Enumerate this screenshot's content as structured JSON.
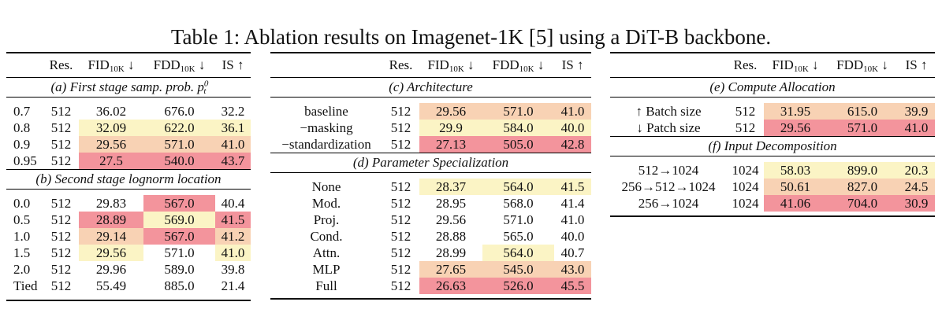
{
  "caption": "Table 1: Ablation results on Imagenet-1K [5] using a DiT-B backbone.",
  "headers": {
    "res": "Res.",
    "fid": "FID",
    "fdd": "FDD",
    "sub": "10K",
    "is": "IS",
    "down": "↓",
    "up": "↑"
  },
  "colors": {
    "low": "#fbf4c5",
    "mid": "#f8d2b4",
    "high": "#f3949c"
  },
  "left": {
    "a_title": "(a) First stage samp. prob. p",
    "a_sup": "0",
    "a_sub": "t",
    "a_rows": [
      {
        "label": "0.7",
        "res": "512",
        "fid": "36.02",
        "fdd": "676.0",
        "is": "32.2",
        "h": [
          0,
          0,
          0
        ]
      },
      {
        "label": "0.8",
        "res": "512",
        "fid": "32.09",
        "fdd": "622.0",
        "is": "36.1",
        "h": [
          1,
          1,
          1
        ]
      },
      {
        "label": "0.9",
        "res": "512",
        "fid": "29.56",
        "fdd": "571.0",
        "is": "41.0",
        "h": [
          2,
          2,
          2
        ]
      },
      {
        "label": "0.95",
        "res": "512",
        "fid": "27.5",
        "fdd": "540.0",
        "is": "43.7",
        "h": [
          3,
          3,
          3
        ]
      }
    ],
    "b_title": "(b) Second stage lognorm location",
    "b_rows": [
      {
        "label": "0.0",
        "res": "512",
        "fid": "29.83",
        "fdd": "567.0",
        "is": "40.4",
        "h": [
          0,
          3,
          0
        ]
      },
      {
        "label": "0.5",
        "res": "512",
        "fid": "28.89",
        "fdd": "569.0",
        "is": "41.5",
        "h": [
          3,
          1,
          3
        ]
      },
      {
        "label": "1.0",
        "res": "512",
        "fid": "29.14",
        "fdd": "567.0",
        "is": "41.2",
        "h": [
          2,
          3,
          2
        ]
      },
      {
        "label": "1.5",
        "res": "512",
        "fid": "29.56",
        "fdd": "571.0",
        "is": "41.0",
        "h": [
          1,
          0,
          1
        ]
      },
      {
        "label": "2.0",
        "res": "512",
        "fid": "29.96",
        "fdd": "589.0",
        "is": "39.8",
        "h": [
          0,
          0,
          0
        ]
      },
      {
        "label": "Tied",
        "res": "512",
        "fid": "55.49",
        "fdd": "885.0",
        "is": "21.4",
        "h": [
          0,
          0,
          0
        ]
      }
    ]
  },
  "middle": {
    "c_title": "(c) Architecture",
    "c_rows": [
      {
        "label": "baseline",
        "res": "512",
        "fid": "29.56",
        "fdd": "571.0",
        "is": "41.0",
        "h": [
          2,
          2,
          2
        ]
      },
      {
        "label": "−masking",
        "res": "512",
        "fid": "29.9",
        "fdd": "584.0",
        "is": "40.0",
        "h": [
          1,
          1,
          1
        ]
      },
      {
        "label": "−standardization",
        "res": "512",
        "fid": "27.13",
        "fdd": "505.0",
        "is": "42.8",
        "h": [
          3,
          3,
          3
        ]
      }
    ],
    "d_title": "(d) Parameter Specialization",
    "d_rows": [
      {
        "label": "None",
        "res": "512",
        "fid": "28.37",
        "fdd": "564.0",
        "is": "41.5",
        "h": [
          1,
          1,
          1
        ]
      },
      {
        "label": "Mod.",
        "res": "512",
        "fid": "28.95",
        "fdd": "568.0",
        "is": "41.4",
        "h": [
          0,
          0,
          0
        ]
      },
      {
        "label": "Proj.",
        "res": "512",
        "fid": "29.56",
        "fdd": "571.0",
        "is": "41.0",
        "h": [
          0,
          0,
          0
        ]
      },
      {
        "label": "Cond.",
        "res": "512",
        "fid": "28.88",
        "fdd": "565.0",
        "is": "40.0",
        "h": [
          0,
          0,
          0
        ]
      },
      {
        "label": "Attn.",
        "res": "512",
        "fid": "28.99",
        "fdd": "564.0",
        "is": "40.7",
        "h": [
          0,
          1,
          0
        ]
      },
      {
        "label": "MLP",
        "res": "512",
        "fid": "27.65",
        "fdd": "545.0",
        "is": "43.0",
        "h": [
          2,
          2,
          2
        ]
      },
      {
        "label": "Full",
        "res": "512",
        "fid": "26.63",
        "fdd": "526.0",
        "is": "45.5",
        "h": [
          3,
          3,
          3
        ]
      }
    ]
  },
  "right": {
    "e_title": "(e) Compute Allocation",
    "e_rows": [
      {
        "label": "↑ Batch size",
        "res": "512",
        "fid": "31.95",
        "fdd": "615.0",
        "is": "39.9",
        "h": [
          2,
          2,
          2
        ]
      },
      {
        "label": "↓ Patch size",
        "res": "512",
        "fid": "29.56",
        "fdd": "571.0",
        "is": "41.0",
        "h": [
          3,
          3,
          3
        ]
      }
    ],
    "f_title": "(f) Input Decomposition",
    "f_rows": [
      {
        "label": "512→1024",
        "res": "1024",
        "fid": "58.03",
        "fdd": "899.0",
        "is": "20.3",
        "h": [
          1,
          1,
          1
        ]
      },
      {
        "label": "256→512→1024",
        "res": "1024",
        "fid": "50.61",
        "fdd": "827.0",
        "is": "24.5",
        "h": [
          2,
          2,
          2
        ]
      },
      {
        "label": "256→1024",
        "res": "1024",
        "fid": "41.06",
        "fdd": "704.0",
        "is": "30.9",
        "h": [
          3,
          3,
          3
        ]
      }
    ]
  }
}
